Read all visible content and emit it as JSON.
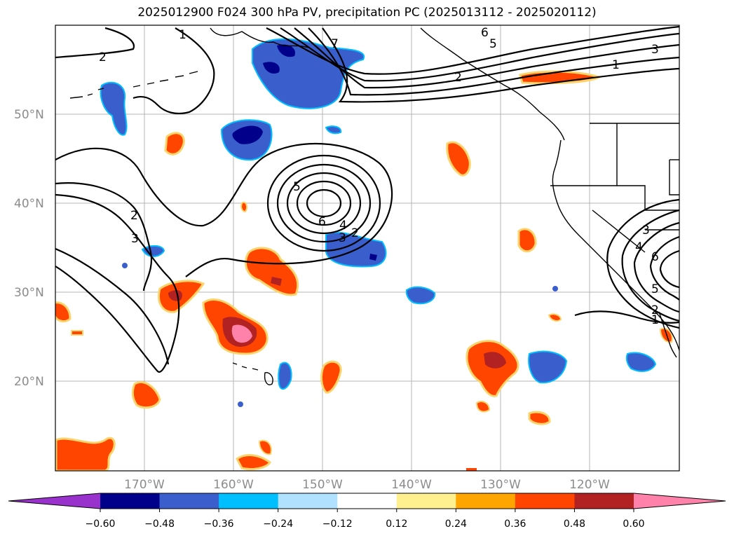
{
  "title": "2025012900 F024 300 hPa PV, precipitation PC (2025013112 - 2025020112)",
  "map": {
    "lon_labels": [
      "170°W",
      "160°W",
      "150°W",
      "140°W",
      "130°W",
      "120°W"
    ],
    "lat_labels": [
      "50°N",
      "40°N",
      "30°N",
      "20°N"
    ],
    "contour_labels": [
      "1",
      "2",
      "7",
      "6",
      "5",
      "3",
      "1",
      "2",
      "2",
      "3",
      "5",
      "6",
      "4",
      "3",
      "2",
      "3",
      "6",
      "5",
      "2",
      "1",
      "4"
    ]
  },
  "colorbar": {
    "ticks": [
      "−0.60",
      "−0.48",
      "−0.36",
      "−0.24",
      "−0.12",
      "0.12",
      "0.24",
      "0.36",
      "0.48",
      "0.60"
    ],
    "colors": [
      "#9932cc",
      "#00008b",
      "#3a5fcd",
      "#00bfff",
      "#b0e2ff",
      "#ffffff",
      "#fff08f",
      "#ffa500",
      "#ff4500",
      "#b22222",
      "#ff82ab"
    ]
  }
}
